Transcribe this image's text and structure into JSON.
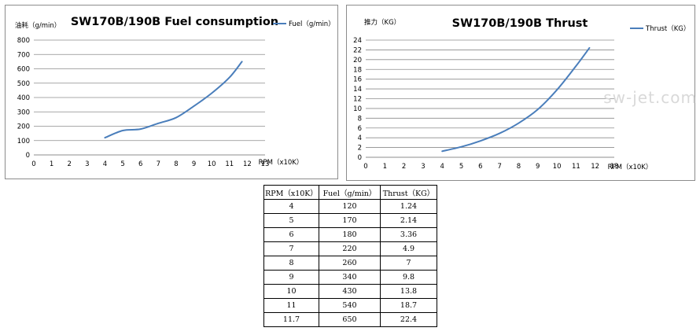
{
  "chart_data": [
    {
      "type": "line",
      "title": "SW170B/190B Fuel consumption",
      "ylabel": "油耗（g/min）",
      "xlabel": "RPM（x10K）",
      "xlim": [
        0,
        13
      ],
      "ylim": [
        0,
        800
      ],
      "xticks": [
        "0",
        "1",
        "2",
        "3",
        "4",
        "5",
        "6",
        "7",
        "8",
        "9",
        "10",
        "11",
        "12",
        "13"
      ],
      "yticks": [
        "0",
        "100",
        "200",
        "300",
        "400",
        "500",
        "600",
        "700",
        "800"
      ],
      "grid": true,
      "legend_position": "top-right",
      "series": [
        {
          "name": "Fuel（g/min）",
          "color": "#4a7ebb",
          "x": [
            4,
            5,
            6,
            7,
            8,
            9,
            10,
            11,
            11.7
          ],
          "y": [
            120,
            170,
            180,
            220,
            260,
            340,
            430,
            540,
            650
          ]
        }
      ]
    },
    {
      "type": "line",
      "title": "SW170B/190B Thrust",
      "ylabel": "推力（KG）",
      "xlabel": "RPM（x10K）",
      "xlim": [
        0,
        13
      ],
      "ylim": [
        0,
        24
      ],
      "xticks": [
        "0",
        "1",
        "2",
        "3",
        "4",
        "5",
        "6",
        "7",
        "8",
        "9",
        "10",
        "11",
        "12",
        "13"
      ],
      "yticks": [
        "0",
        "2",
        "4",
        "6",
        "8",
        "10",
        "12",
        "14",
        "16",
        "18",
        "20",
        "22",
        "24"
      ],
      "grid": true,
      "legend_position": "top-right",
      "series": [
        {
          "name": "Thrust（KG）",
          "color": "#4a7ebb",
          "x": [
            4,
            5,
            6,
            7,
            8,
            9,
            10,
            11,
            11.7
          ],
          "y": [
            1.24,
            2.14,
            3.36,
            4.9,
            7,
            9.8,
            13.8,
            18.7,
            22.4
          ]
        }
      ]
    }
  ],
  "watermark": "sw-jet.com",
  "table": {
    "headers": [
      "RPM（x10K）",
      "Fuel（g/min）",
      "Thrust（KG）"
    ],
    "rows": [
      [
        "4",
        "120",
        "1.24"
      ],
      [
        "5",
        "170",
        "2.14"
      ],
      [
        "6",
        "180",
        "3.36"
      ],
      [
        "7",
        "220",
        "4.9"
      ],
      [
        "8",
        "260",
        "7"
      ],
      [
        "9",
        "340",
        "9.8"
      ],
      [
        "10",
        "430",
        "13.8"
      ],
      [
        "11",
        "540",
        "18.7"
      ],
      [
        "11.7",
        "650",
        "22.4"
      ]
    ]
  }
}
